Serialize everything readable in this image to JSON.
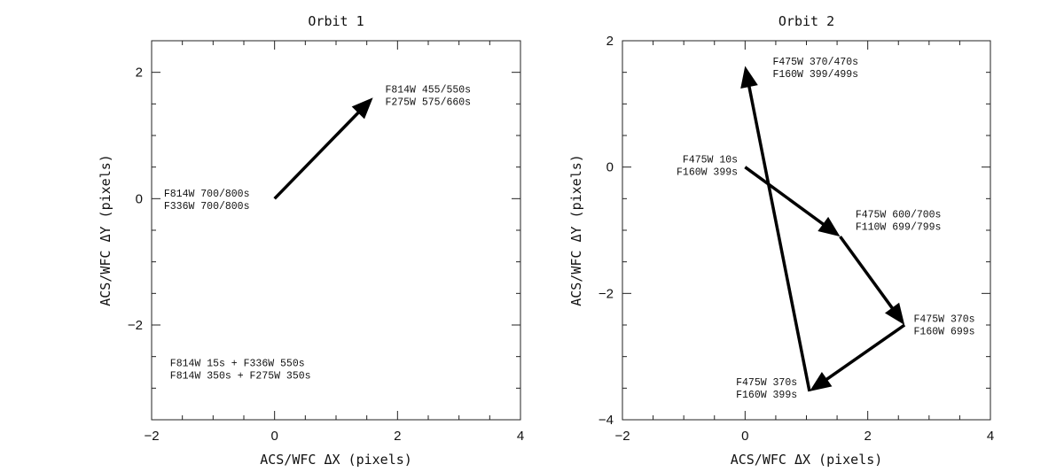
{
  "chart_data": [
    {
      "type": "line",
      "title": "Orbit 1",
      "xlabel": "ACS/WFC ΔX (pixels)",
      "ylabel": "ACS/WFC ΔY (pixels)",
      "xlim": [
        -2,
        4
      ],
      "ylim": [
        -3.5,
        2.5
      ],
      "xticks": [
        -2,
        0,
        2,
        4
      ],
      "yticks": [
        -2,
        0,
        2
      ],
      "xtick_labels": [
        "−2",
        "0",
        "2",
        "4"
      ],
      "ytick_labels": [
        "−2",
        "0",
        "2"
      ],
      "grid": false,
      "arrows": [
        {
          "from": [
            0,
            0
          ],
          "to": [
            1.6,
            1.6
          ]
        }
      ],
      "annotations": [
        {
          "x": 1.8,
          "y": 1.68,
          "anchor": "start",
          "lines": [
            "F814W 455/550s",
            "F275W 575/660s"
          ]
        },
        {
          "x": -1.8,
          "y": 0.03,
          "anchor": "start",
          "lines": [
            "F814W 700/800s",
            "F336W 700/800s"
          ]
        },
        {
          "x": -1.7,
          "y": -2.65,
          "anchor": "start",
          "lines": [
            "F814W  15s + F336W 550s",
            "F814W 350s + F275W 350s"
          ]
        }
      ]
    },
    {
      "type": "line",
      "title": "Orbit 2",
      "xlabel": "ACS/WFC ΔX (pixels)",
      "ylabel": "ACS/WFC ΔY (pixels)",
      "xlim": [
        -2,
        4
      ],
      "ylim": [
        -4,
        2
      ],
      "xticks": [
        -2,
        0,
        2,
        4
      ],
      "yticks": [
        -4,
        -2,
        0,
        2
      ],
      "xtick_labels": [
        "−2",
        "0",
        "2",
        "4"
      ],
      "ytick_labels": [
        "−4",
        "−2",
        "0",
        "2"
      ],
      "grid": false,
      "arrows": [
        {
          "from": [
            0,
            0
          ],
          "to": [
            1.55,
            -1.1
          ]
        },
        {
          "from": [
            1.55,
            -1.1
          ],
          "to": [
            2.6,
            -2.5
          ]
        },
        {
          "from": [
            2.6,
            -2.5
          ],
          "to": [
            1.05,
            -3.55
          ]
        },
        {
          "from": [
            1.05,
            -3.55
          ],
          "to": [
            0.0,
            1.6
          ]
        }
      ],
      "annotations": [
        {
          "x": 0.45,
          "y": 1.62,
          "anchor": "start",
          "lines": [
            "F475W 370/470s",
            "F160W 399/499s"
          ]
        },
        {
          "x": -0.12,
          "y": 0.07,
          "anchor": "end",
          "lines": [
            "F475W  10s",
            "F160W 399s"
          ]
        },
        {
          "x": 1.8,
          "y": -0.8,
          "anchor": "start",
          "lines": [
            "F475W 600/700s",
            "F110W 699/799s"
          ]
        },
        {
          "x": 2.75,
          "y": -2.45,
          "anchor": "start",
          "lines": [
            "F475W 370s",
            "F160W 699s"
          ]
        },
        {
          "x": 0.85,
          "y": -3.45,
          "anchor": "end",
          "lines": [
            "F475W 370s",
            "F160W 399s"
          ]
        }
      ]
    }
  ]
}
